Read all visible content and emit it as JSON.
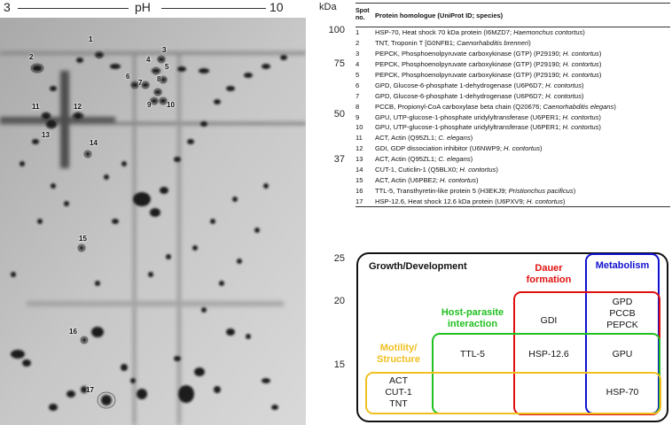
{
  "gel": {
    "ph_start": "3",
    "ph_label": "pH",
    "ph_end": "10",
    "mw_unit": "kDa",
    "mw_markers": [
      "100",
      "75",
      "50",
      "37",
      "25",
      "20",
      "15"
    ],
    "spot_labels": [
      "1",
      "2",
      "3",
      "4",
      "5",
      "6",
      "7",
      "8",
      "9",
      "10",
      "11",
      "12",
      "13",
      "14",
      "15",
      "16",
      "17"
    ]
  },
  "table": {
    "header_spot": "Spot no.",
    "header_homologue": "Protein homologue (UniProt ID; species)",
    "rows": [
      {
        "spot": "1",
        "text": "HSP-70, Heat shock 70 kDa protein (I6MZD7; ",
        "species": "Haemonchus contortus",
        "close": ")"
      },
      {
        "spot": "2",
        "text": "TNT, Troponin T [G0NFB1; ",
        "species": "Caenorhabditis brenneri",
        "close": ")"
      },
      {
        "spot": "3",
        "text": "PEPCK, Phosphoenolpyruvate carboxykinase (GTP) (P29190; ",
        "species": "H. contortus",
        "close": ")"
      },
      {
        "spot": "4",
        "text": "PEPCK, Phosphoenolpyruvate carboxykinase (GTP) (P29190; ",
        "species": "H. contortus",
        "close": ")"
      },
      {
        "spot": "5",
        "text": "PEPCK, Phosphoenolpyruvate carboxykinase (GTP) (P29190; ",
        "species": "H. contortus",
        "close": ")"
      },
      {
        "spot": "6",
        "text": "GPD, Glucose-6-phosphate 1-dehydrogenase (U6P6D7; ",
        "species": "H. contortus",
        "close": ")"
      },
      {
        "spot": "7",
        "text": "GPD, Glucose-6-phosphate 1-dehydrogenase (U6P6D7; ",
        "species": "H. contortus",
        "close": ")"
      },
      {
        "spot": "8",
        "text": "PCCB, Propionyl-CoA carboxylase beta chain (Q20676; ",
        "species": "Caenorhabditis elegans",
        "close": ")"
      },
      {
        "spot": "9",
        "text": "GPU, UTP-glucose-1-phosphate uridylyltransferase (U6PER1; ",
        "species": "H. contortus",
        "close": ")"
      },
      {
        "spot": "10",
        "text": "GPU, UTP-glucose-1-phosphate uridylyltransferase (U6PER1; ",
        "species": "H. contortus",
        "close": ")"
      },
      {
        "spot": "11",
        "text": "ACT, Actin (Q95ZL1; ",
        "species": "C. elegans",
        "close": ")"
      },
      {
        "spot": "12",
        "text": "GDI, GDP dissociation inhibitor (U6NWP9; ",
        "species": "H. contortus",
        "close": ")"
      },
      {
        "spot": "13",
        "text": "ACT, Actin (Q95ZL1; ",
        "species": "C. elegans",
        "close": ")"
      },
      {
        "spot": "14",
        "text": "CUT-1, Cuticlin-1 (Q5BLX0; ",
        "species": "H. contortus",
        "close": ")"
      },
      {
        "spot": "15",
        "text": "ACT, Actin (U6PBE2; ",
        "species": "H. contortus",
        "close": ")"
      },
      {
        "spot": "16",
        "text": "TTL-5, Transthyretin-like protein 5 (H3EKJ9; ",
        "species": "Pristionchus pacificus",
        "close": ")"
      },
      {
        "spot": "17",
        "text": "HSP-12.6, Heat shock 12.6 kDa protein (U6PXV9; ",
        "species": "H. contortus",
        "close": ")"
      }
    ]
  },
  "venn": {
    "growth_title": "Growth/Development",
    "metabolism_title": "Metabolism",
    "dauer_title_1": "Dauer",
    "dauer_title_2": "formation",
    "host_title_1": "Host-parasite",
    "host_title_2": "interaction",
    "motility_title_1": "Motility/",
    "motility_title_2": "Structure",
    "items": {
      "gdi": "GDI",
      "gpd": "GPD",
      "pccb": "PCCB",
      "pepck": "PEPCK",
      "ttl5": "TTL-5",
      "hsp126": "HSP-12.6",
      "gpu": "GPU",
      "act": "ACT",
      "cut1": "CUT-1",
      "tnt": "TNT",
      "hsp70": "HSP-70"
    },
    "colors": {
      "metabolism": "#1010d0",
      "dauer": "#e01010",
      "host_parasite": "#20c020",
      "motility": "#f0c020",
      "frame": "#111111"
    }
  }
}
